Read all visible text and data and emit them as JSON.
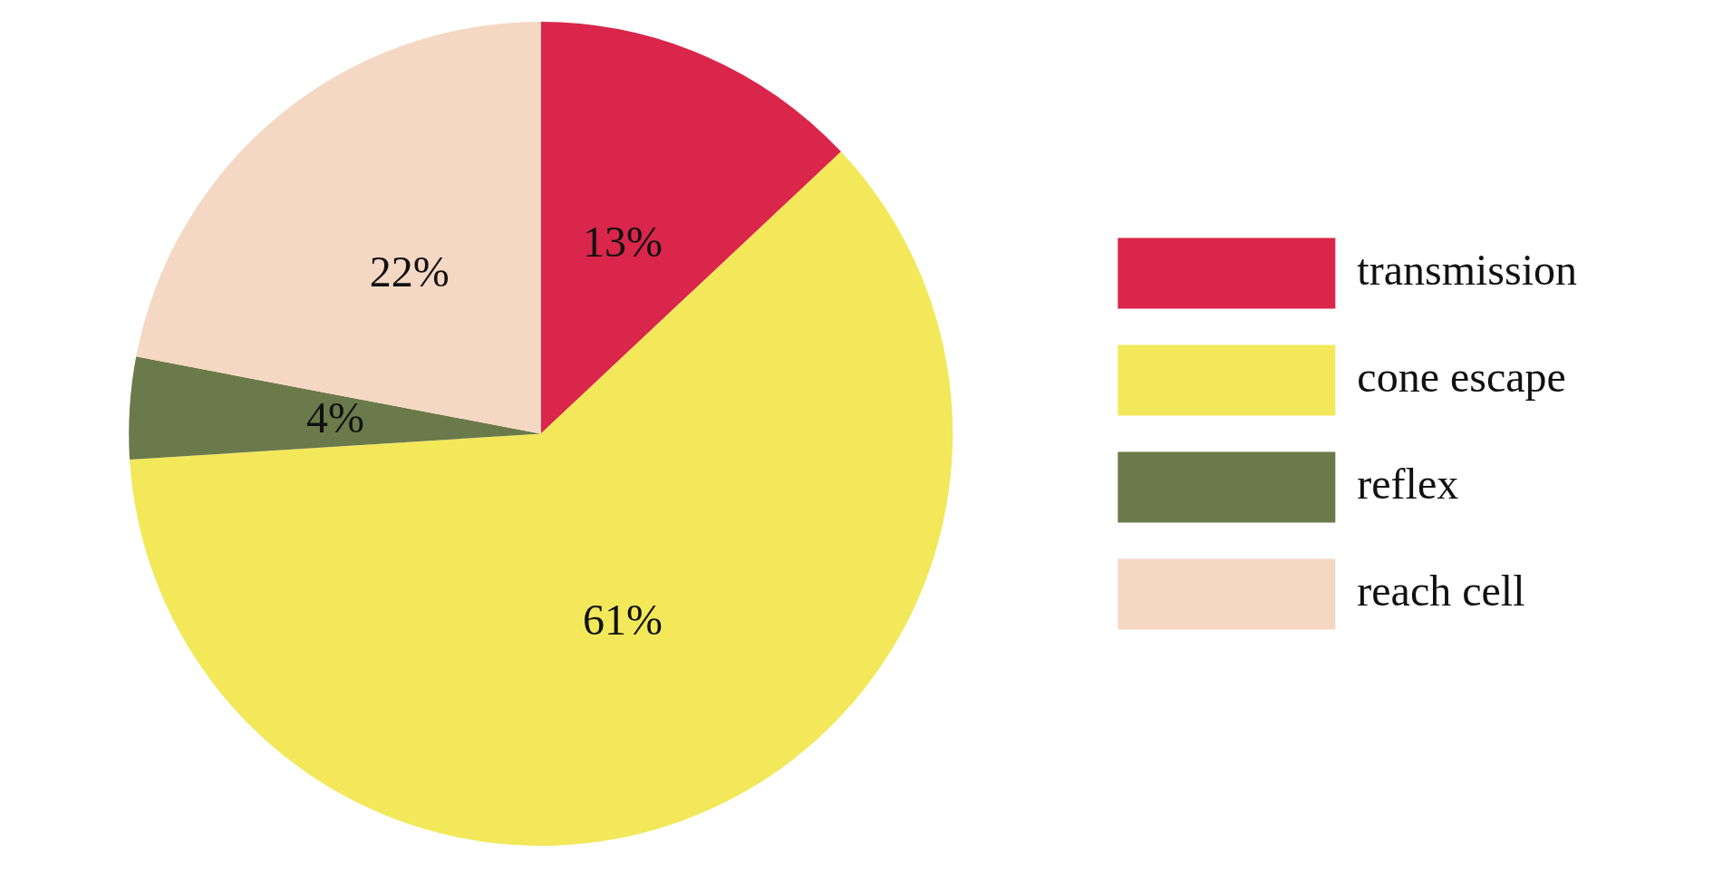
{
  "chart_data": {
    "type": "pie",
    "categories": [
      "transmission",
      "cone escape",
      "reflex",
      "reach cell"
    ],
    "values": [
      13,
      61,
      4,
      22
    ],
    "colors": [
      "#d9264a",
      "#f2e85a",
      "#6b7a4a",
      "#f5d8c3"
    ],
    "value_labels": [
      "13%",
      "61%",
      "4%",
      "22%"
    ],
    "legend": "right"
  }
}
